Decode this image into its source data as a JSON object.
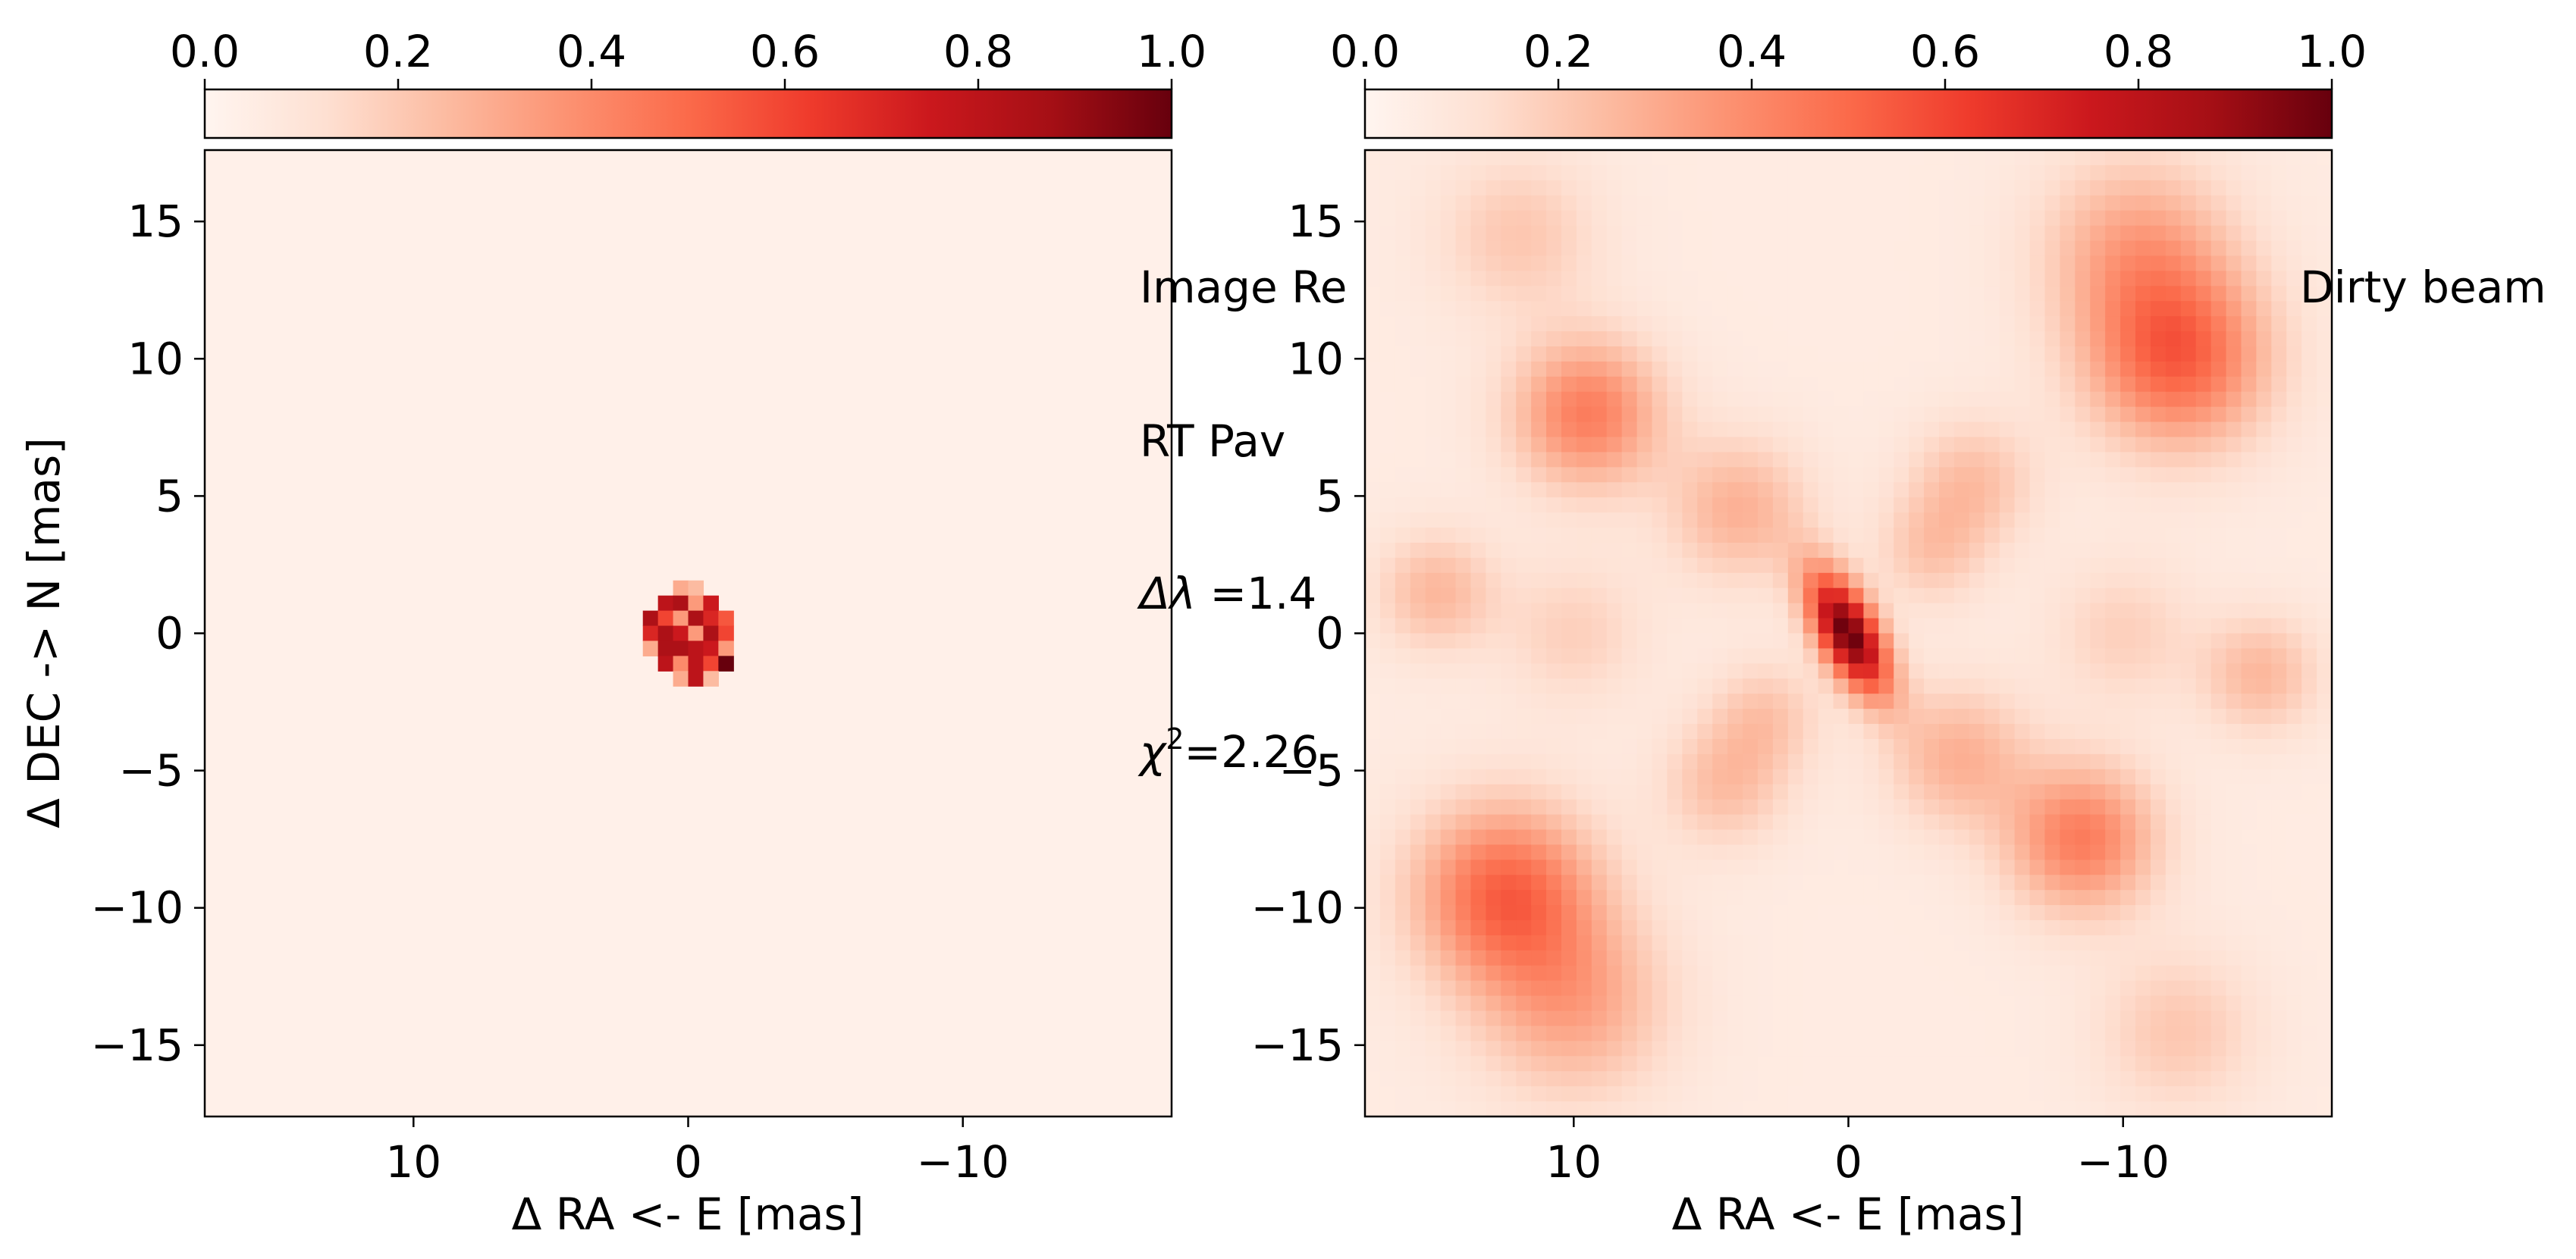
{
  "colormap": {
    "name": "Reds",
    "stops": [
      "#fff5f0",
      "#fee0d2",
      "#fcbba1",
      "#fc9272",
      "#fb6a4a",
      "#ef3b2c",
      "#cb181d",
      "#a50f15",
      "#67000d"
    ]
  },
  "chart_data": [
    {
      "type": "heatmap",
      "name": "reconstructed-image",
      "title": "",
      "xlabel": "Δ RA <- E [mas]",
      "ylabel": "Δ DEC -> N [mas]",
      "xlim": [
        17.6,
        -17.6
      ],
      "ylim": [
        -17.6,
        17.6
      ],
      "x_ticks": [
        10,
        0,
        -10
      ],
      "x_tick_labels": [
        "10",
        "0",
        "−10"
      ],
      "y_ticks": [
        15,
        10,
        5,
        0,
        -5,
        -10,
        -15
      ],
      "y_tick_labels": [
        "15",
        "10",
        "5",
        "0",
        "−5",
        "−10",
        "−15"
      ],
      "pixel_size_mas": 0.55,
      "grid_size": 64,
      "background_level": 0.03,
      "colorbar": {
        "range": [
          0.0,
          1.0
        ],
        "ticks": [
          0.0,
          0.2,
          0.4,
          0.6,
          0.8,
          1.0
        ],
        "tick_labels": [
          "0.0",
          "0.2",
          "0.4",
          "0.6",
          "0.8",
          "1.0"
        ],
        "position": "top"
      },
      "bright_pixels": [
        {
          "x": 0.275,
          "y": 1.65,
          "v": 0.3
        },
        {
          "x": -0.275,
          "y": 1.65,
          "v": 0.25
        },
        {
          "x": 0.825,
          "y": 1.1,
          "v": 0.8
        },
        {
          "x": 0.275,
          "y": 1.1,
          "v": 0.85
        },
        {
          "x": -0.275,
          "y": 1.1,
          "v": 0.35
        },
        {
          "x": -0.825,
          "y": 1.1,
          "v": 0.75
        },
        {
          "x": 1.375,
          "y": 0.55,
          "v": 0.85
        },
        {
          "x": 0.825,
          "y": 0.55,
          "v": 0.6
        },
        {
          "x": 0.275,
          "y": 0.55,
          "v": 0.35
        },
        {
          "x": -0.275,
          "y": 0.55,
          "v": 0.85
        },
        {
          "x": -0.825,
          "y": 0.55,
          "v": 0.7
        },
        {
          "x": -1.375,
          "y": 0.55,
          "v": 0.55
        },
        {
          "x": 1.375,
          "y": 0.0,
          "v": 0.7
        },
        {
          "x": 0.825,
          "y": 0.0,
          "v": 0.85
        },
        {
          "x": 0.275,
          "y": 0.0,
          "v": 0.75
        },
        {
          "x": -0.275,
          "y": 0.0,
          "v": 0.35
        },
        {
          "x": -0.825,
          "y": 0.0,
          "v": 0.85
        },
        {
          "x": -1.375,
          "y": 0.0,
          "v": 0.6
        },
        {
          "x": 1.375,
          "y": -0.55,
          "v": 0.3
        },
        {
          "x": 0.825,
          "y": -0.55,
          "v": 0.85
        },
        {
          "x": 0.275,
          "y": -0.55,
          "v": 0.85
        },
        {
          "x": -0.275,
          "y": -0.55,
          "v": 0.8
        },
        {
          "x": -0.825,
          "y": -0.55,
          "v": 0.75
        },
        {
          "x": -1.375,
          "y": -0.55,
          "v": 0.35
        },
        {
          "x": 0.825,
          "y": -1.1,
          "v": 0.8
        },
        {
          "x": 0.275,
          "y": -1.1,
          "v": 0.4
        },
        {
          "x": -0.275,
          "y": -1.1,
          "v": 0.8
        },
        {
          "x": -0.825,
          "y": -1.1,
          "v": 0.6
        },
        {
          "x": -1.375,
          "y": -1.1,
          "v": 1.0
        },
        {
          "x": 0.275,
          "y": -1.65,
          "v": 0.3
        },
        {
          "x": -0.275,
          "y": -1.65,
          "v": 0.8
        },
        {
          "x": -0.825,
          "y": -1.65,
          "v": 0.25
        }
      ]
    },
    {
      "type": "heatmap",
      "name": "dirty-beam",
      "title": "",
      "xlabel": "Δ RA <- E [mas]",
      "ylabel": "",
      "xlim": [
        17.6,
        -17.6
      ],
      "ylim": [
        -17.6,
        17.6
      ],
      "x_ticks": [
        10,
        0,
        -10
      ],
      "x_tick_labels": [
        "10",
        "0",
        "−10"
      ],
      "y_ticks": [
        15,
        10,
        5,
        0,
        -5,
        -10,
        -15
      ],
      "y_tick_labels": [
        "15",
        "10",
        "5",
        "0",
        "−5",
        "−10",
        "−15"
      ],
      "pixel_size_mas": 0.55,
      "grid_size": 64,
      "background_level": 0.06,
      "colorbar": {
        "range": [
          0.0,
          1.0
        ],
        "ticks": [
          0.0,
          0.2,
          0.4,
          0.6,
          0.8,
          1.0
        ],
        "tick_labels": [
          "0.0",
          "0.2",
          "0.4",
          "0.6",
          "0.8",
          "1.0"
        ],
        "position": "top"
      },
      "central_peak": {
        "x": 0.0,
        "y": 0.0,
        "amp": 0.95,
        "sigma_major": 1.7,
        "sigma_minor": 0.75,
        "angle_deg": 62
      },
      "sidelobes": [
        {
          "x": 12.5,
          "y": -9.5,
          "amp": 0.45,
          "sigma": 2.3
        },
        {
          "x": -12.0,
          "y": 10.0,
          "amp": 0.45,
          "sigma": 2.3
        },
        {
          "x": 9.5,
          "y": 8.0,
          "amp": 0.38,
          "sigma": 1.9
        },
        {
          "x": -8.5,
          "y": -7.5,
          "amp": 0.38,
          "sigma": 1.9
        },
        {
          "x": -10.5,
          "y": 14.0,
          "amp": 0.25,
          "sigma": 2.4
        },
        {
          "x": 10.0,
          "y": -13.5,
          "amp": 0.25,
          "sigma": 2.4
        },
        {
          "x": 4.0,
          "y": 4.5,
          "amp": 0.22,
          "sigma": 1.8
        },
        {
          "x": -4.0,
          "y": -4.5,
          "amp": 0.22,
          "sigma": 1.8
        },
        {
          "x": 15.0,
          "y": 1.5,
          "amp": 0.2,
          "sigma": 1.5
        },
        {
          "x": -15.0,
          "y": -1.5,
          "amp": 0.2,
          "sigma": 1.5
        },
        {
          "x": -4.5,
          "y": 5.5,
          "amp": 0.18,
          "sigma": 1.6
        },
        {
          "x": 4.5,
          "y": -5.5,
          "amp": 0.18,
          "sigma": 1.6
        },
        {
          "x": 3.0,
          "y": -3.0,
          "amp": 0.15,
          "sigma": 1.4
        },
        {
          "x": -3.0,
          "y": 3.0,
          "amp": 0.15,
          "sigma": 1.4
        },
        {
          "x": 12.0,
          "y": 14.5,
          "amp": 0.15,
          "sigma": 2.0
        },
        {
          "x": -12.0,
          "y": -14.5,
          "amp": 0.15,
          "sigma": 2.0
        },
        {
          "x": 10.0,
          "y": 0.0,
          "amp": 0.12,
          "sigma": 1.8
        },
        {
          "x": -10.0,
          "y": 0.0,
          "amp": 0.12,
          "sigma": 1.8
        }
      ]
    }
  ],
  "annotations": {
    "panel_label_left": "Image Re",
    "panel_label_right": "Dirty beam",
    "target": "RT Pav",
    "wavelength": "Δλ =1.4",
    "chi2": "χ²=2.26"
  }
}
